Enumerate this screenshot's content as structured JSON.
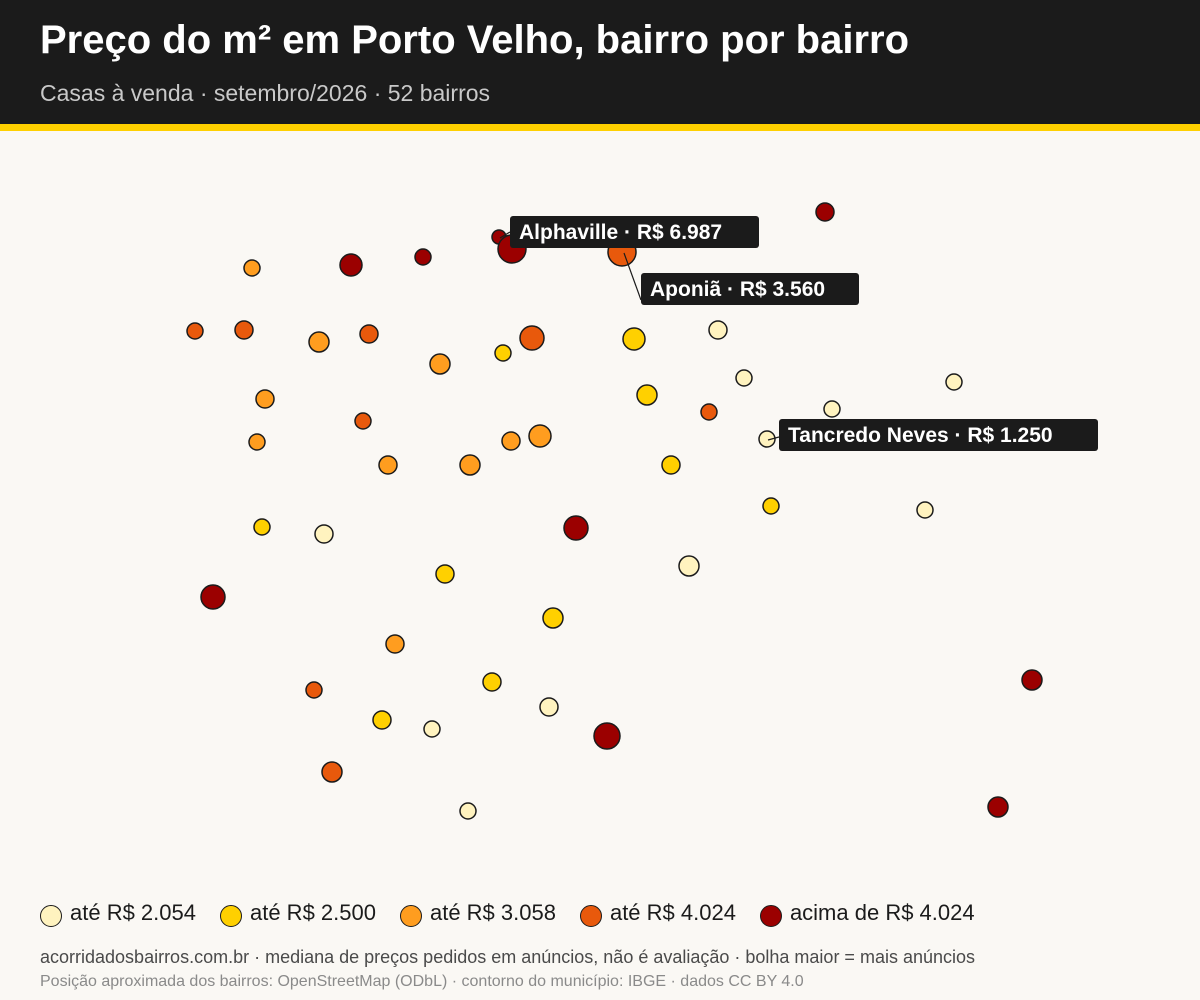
{
  "header": {
    "title": "Preço do m² em Porto Velho, bairro por bairro",
    "subtitle": "Casas à venda · setembro/2026 · 52 bairros"
  },
  "colors": {
    "tier1": "#fff3bf",
    "tier2": "#ffd000",
    "tier3": "#ff9d1f",
    "tier4": "#e8590c",
    "tier5": "#9b0000",
    "accent": "#ffd000",
    "header_bg": "#1b1b1b"
  },
  "callouts": [
    {
      "text": "Alphaville · R$ 6.987"
    },
    {
      "text": "Aponiã · R$ 3.560"
    },
    {
      "text": "Tancredo Neves · R$ 1.250"
    }
  ],
  "legend": [
    {
      "label": "até R$ 2.054",
      "tier": 1
    },
    {
      "label": "até R$ 2.500",
      "tier": 2
    },
    {
      "label": "até R$ 3.058",
      "tier": 3
    },
    {
      "label": "até R$ 4.024",
      "tier": 4
    },
    {
      "label": "acima de R$ 4.024",
      "tier": 5
    }
  ],
  "footer": {
    "line1": "acorridadosbairros.com.br · mediana de preços pedidos em anúncios, não é avaliação · bolha maior = mais anúncios",
    "line2": "Posição aproximada dos bairros: OpenStreetMap (ODbL) · contorno do município: IBGE · dados CC BY 4.0"
  }
}
